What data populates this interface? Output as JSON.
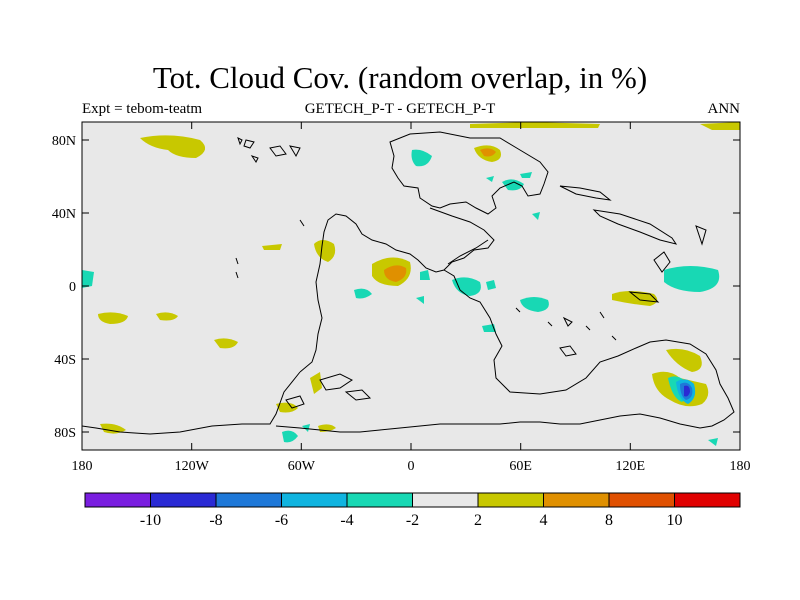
{
  "title": "Tot. Cloud Cov. (random overlap, in %)",
  "subtitle_left": "Expt = tebom-teatm",
  "subtitle_center": "GETECH_P-T - GETECH_P-T",
  "subtitle_right": "ANN",
  "background_color": "#e8e8e8",
  "x_ticks": [
    "180",
    "120W",
    "60W",
    "0",
    "60E",
    "120E",
    "180"
  ],
  "y_ticks": [
    "80N",
    "40N",
    "0",
    "40S",
    "80S"
  ],
  "colorbar": {
    "colors": [
      "#7a1ee0",
      "#2a2ad4",
      "#1e78d8",
      "#10b4e0",
      "#18d8b4",
      "#e8e8e8",
      "#c8c800",
      "#e09000",
      "#e05000",
      "#e00000"
    ],
    "labels": [
      "-10",
      "-8",
      "-6",
      "-4",
      "-2",
      "2",
      "4",
      "8",
      "10"
    ]
  }
}
